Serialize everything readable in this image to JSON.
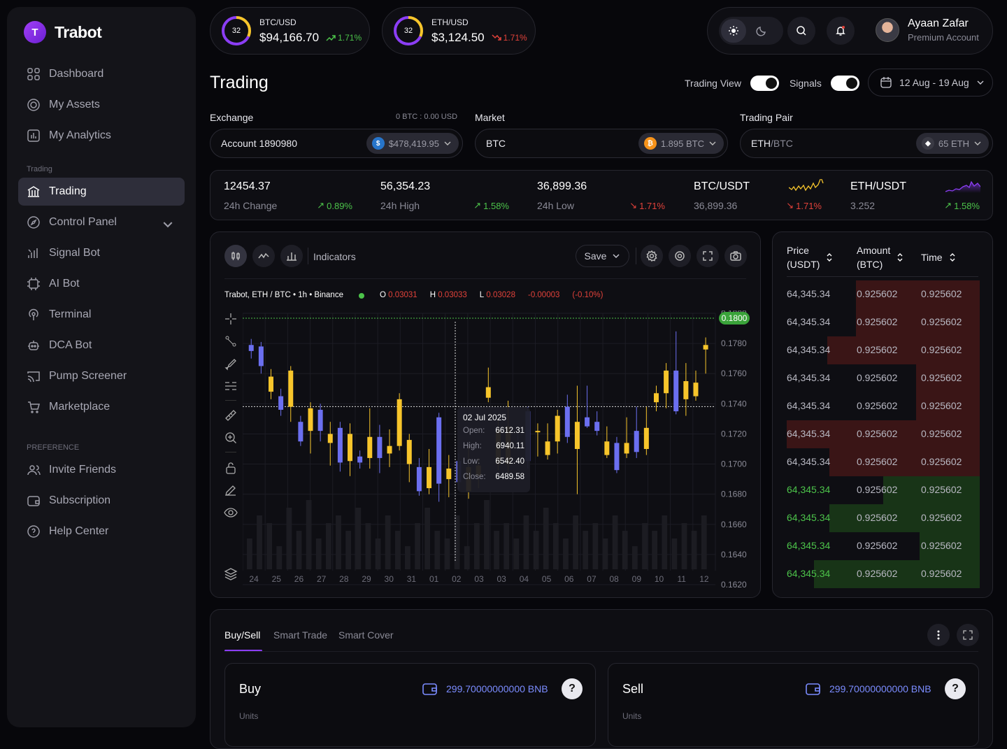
{
  "app": {
    "name": "Trabot",
    "logo_letter": "T"
  },
  "sidebar": {
    "items": [
      {
        "label": "Dashboard",
        "icon": "grid-icon"
      },
      {
        "label": "My Assets",
        "icon": "coins-icon"
      },
      {
        "label": "My Analytics",
        "icon": "bar-chart-icon"
      }
    ],
    "section_trading": "Trading",
    "trading_items": [
      {
        "label": "Trading",
        "icon": "bank-icon",
        "active": true
      },
      {
        "label": "Control Panel",
        "icon": "compass-icon"
      },
      {
        "label": "Signal Bot",
        "icon": "signal-icon"
      },
      {
        "label": "AI Bot",
        "icon": "chip-icon"
      },
      {
        "label": "Terminal",
        "icon": "broadcast-icon"
      },
      {
        "label": "DCA Bot",
        "icon": "robot-icon"
      },
      {
        "label": "Pump Screener",
        "icon": "cast-icon"
      },
      {
        "label": "Marketplace",
        "icon": "cart-icon"
      }
    ],
    "section_pref": "PREFERENCE",
    "pref_items": [
      {
        "label": "Invite Friends",
        "icon": "users-icon"
      },
      {
        "label": "Subscription",
        "icon": "wallet-icon"
      },
      {
        "label": "Help Center",
        "icon": "help-icon"
      }
    ]
  },
  "tickers": [
    {
      "pair": "BTC/USD",
      "price": "$94,166.70",
      "change": "1.71%",
      "dir": "up",
      "percent": "32",
      "ring_fill": 0.32
    },
    {
      "pair": "ETH/USD",
      "price": "$3,124.50",
      "change": "1.71%",
      "dir": "down",
      "percent": "32",
      "ring_fill": 0.32
    }
  ],
  "user": {
    "name": "Ayaan Zafar",
    "role": "Premium Account"
  },
  "page": {
    "title": "Trading"
  },
  "toggles": {
    "trading_view": "Trading View",
    "signals": "Signals"
  },
  "date_range": "12 Aug - 19 Aug",
  "exchange": {
    "label": "Exchange",
    "sub": "0 BTC : 0.00 USD",
    "account": "Account 1890980",
    "balance": "$478,419.95"
  },
  "market": {
    "label": "Market",
    "value": "BTC",
    "balance": "1.895 BTC"
  },
  "pair": {
    "label": "Trading Pair",
    "base": "ETH",
    "quote": "/BTC",
    "balance": "65 ETH"
  },
  "stats": [
    {
      "value": "12454.37",
      "label": "24h Change",
      "change": "0.89%",
      "dir": "up"
    },
    {
      "value": "56,354.23",
      "label": "24h High",
      "change": "1.58%",
      "dir": "up"
    },
    {
      "value": "36,899.36",
      "label": "24h Low",
      "change": "1.71%",
      "dir": "down"
    },
    {
      "value": "BTC/USDT",
      "label": "36,899.36",
      "change": "1.71%",
      "dir": "down"
    },
    {
      "value": "ETH/USDT",
      "label": "3.252",
      "change": "1.58%",
      "dir": "up"
    }
  ],
  "chart_toolbar": {
    "indicators": "Indicators",
    "save": "Save"
  },
  "ohlc": {
    "title": "Trabot, ETH / BTC • 1h • Binance",
    "o": "0.03031",
    "h": "0.03033",
    "l": "0.03028",
    "chg": "-0.00003",
    "pct": "(-0.10%)",
    "o_lbl": "O",
    "h_lbl": "H",
    "l_lbl": "L"
  },
  "tooltip": {
    "date": "02 Jul 2025",
    "rows": [
      [
        "Open:",
        "6612.31"
      ],
      [
        "High:",
        "6940.11"
      ],
      [
        "Low:",
        "6542.40"
      ],
      [
        "Close:",
        "6489.58"
      ]
    ]
  },
  "chart_data": {
    "type": "candlestick",
    "x_labels": [
      "24",
      "25",
      "26",
      "27",
      "28",
      "29",
      "30",
      "31",
      "01",
      "02",
      "03",
      "03",
      "04",
      "05",
      "06",
      "07",
      "08",
      "09",
      "10",
      "11",
      "12"
    ],
    "y_ticks": [
      "0.1800",
      "0.1780",
      "0.1760",
      "0.1740",
      "0.1720",
      "0.1700",
      "0.1680",
      "0.1660",
      "0.1640",
      "0.1620"
    ],
    "ylim": [
      0.162,
      0.18
    ],
    "current_price": "0.1800",
    "crosshair_price": 0.174,
    "colors": {
      "up": "#f7c52b",
      "down": "#6b6ff0",
      "grid": "#1c1c24"
    },
    "candles": [
      {
        "o": 0.1779,
        "c": 0.1775,
        "h": 0.1783,
        "l": 0.177
      },
      {
        "o": 0.1778,
        "c": 0.1765,
        "h": 0.1781,
        "l": 0.176
      },
      {
        "o": 0.1748,
        "c": 0.1758,
        "h": 0.1763,
        "l": 0.1743
      },
      {
        "o": 0.1745,
        "c": 0.1736,
        "h": 0.175,
        "l": 0.1732
      },
      {
        "o": 0.1738,
        "c": 0.1762,
        "h": 0.1765,
        "l": 0.1728
      },
      {
        "o": 0.1728,
        "c": 0.1715,
        "h": 0.1732,
        "l": 0.1712
      },
      {
        "o": 0.1722,
        "c": 0.1737,
        "h": 0.1741,
        "l": 0.1707
      },
      {
        "o": 0.1736,
        "c": 0.1722,
        "h": 0.174,
        "l": 0.1715
      },
      {
        "o": 0.1714,
        "c": 0.172,
        "h": 0.1728,
        "l": 0.1699
      },
      {
        "o": 0.1724,
        "c": 0.1701,
        "h": 0.1728,
        "l": 0.1695
      },
      {
        "o": 0.1702,
        "c": 0.172,
        "h": 0.1727,
        "l": 0.1692
      },
      {
        "o": 0.1705,
        "c": 0.1701,
        "h": 0.1709,
        "l": 0.1697
      },
      {
        "o": 0.1704,
        "c": 0.1718,
        "h": 0.1737,
        "l": 0.1697
      },
      {
        "o": 0.1718,
        "c": 0.1704,
        "h": 0.1726,
        "l": 0.1694
      },
      {
        "o": 0.1707,
        "c": 0.1712,
        "h": 0.1723,
        "l": 0.1698
      },
      {
        "o": 0.1712,
        "c": 0.1743,
        "h": 0.1747,
        "l": 0.1709
      },
      {
        "o": 0.17,
        "c": 0.1716,
        "h": 0.172,
        "l": 0.1688
      },
      {
        "o": 0.1698,
        "c": 0.1682,
        "h": 0.1704,
        "l": 0.1679
      },
      {
        "o": 0.1684,
        "c": 0.1698,
        "h": 0.171,
        "l": 0.168
      },
      {
        "o": 0.1731,
        "c": 0.1687,
        "h": 0.1734,
        "l": 0.1675
      },
      {
        "o": 0.169,
        "c": 0.1697,
        "h": 0.1706,
        "l": 0.1678
      },
      {
        "o": 0.1702,
        "c": 0.1688,
        "h": 0.1707,
        "l": 0.1683
      },
      {
        "o": 0.1682,
        "c": 0.1698,
        "h": 0.1712,
        "l": 0.1677
      },
      {
        "o": 0.1692,
        "c": 0.1699,
        "h": 0.1704,
        "l": 0.1684
      },
      {
        "o": 0.1744,
        "c": 0.1751,
        "h": 0.1764,
        "l": 0.1741
      },
      {
        "o": 0.17,
        "c": 0.1723,
        "h": 0.173,
        "l": 0.1696
      },
      {
        "o": 0.17,
        "c": 0.1725,
        "h": 0.1742,
        "l": 0.1694
      },
      {
        "o": 0.1713,
        "c": 0.1712,
        "h": 0.1721,
        "l": 0.1709
      },
      {
        "o": 0.1735,
        "c": 0.1702,
        "h": 0.1738,
        "l": 0.1697
      },
      {
        "o": 0.1722,
        "c": 0.1722,
        "h": 0.1727,
        "l": 0.1705
      },
      {
        "o": 0.1706,
        "c": 0.1715,
        "h": 0.1727,
        "l": 0.1703
      },
      {
        "o": 0.1715,
        "c": 0.1732,
        "h": 0.1736,
        "l": 0.1707
      },
      {
        "o": 0.1738,
        "c": 0.1718,
        "h": 0.1746,
        "l": 0.1714
      },
      {
        "o": 0.171,
        "c": 0.1728,
        "h": 0.1752,
        "l": 0.168
      },
      {
        "o": 0.1731,
        "c": 0.1725,
        "h": 0.1752,
        "l": 0.1724
      },
      {
        "o": 0.1728,
        "c": 0.1722,
        "h": 0.1735,
        "l": 0.1719
      },
      {
        "o": 0.1706,
        "c": 0.1715,
        "h": 0.1725,
        "l": 0.1704
      },
      {
        "o": 0.1714,
        "c": 0.1696,
        "h": 0.1718,
        "l": 0.1694
      },
      {
        "o": 0.1707,
        "c": 0.1714,
        "h": 0.1731,
        "l": 0.1704
      },
      {
        "o": 0.1722,
        "c": 0.1708,
        "h": 0.1738,
        "l": 0.1704
      },
      {
        "o": 0.171,
        "c": 0.1724,
        "h": 0.1738,
        "l": 0.1706
      },
      {
        "o": 0.1741,
        "c": 0.1747,
        "h": 0.1752,
        "l": 0.1735
      },
      {
        "o": 0.1747,
        "c": 0.1762,
        "h": 0.1767,
        "l": 0.1737
      },
      {
        "o": 0.1762,
        "c": 0.1735,
        "h": 0.1788,
        "l": 0.1733
      },
      {
        "o": 0.1743,
        "c": 0.1755,
        "h": 0.1767,
        "l": 0.1732
      },
      {
        "o": 0.1745,
        "c": 0.1754,
        "h": 0.1762,
        "l": 0.1742
      },
      {
        "o": 0.1776,
        "c": 0.1779,
        "h": 0.1784,
        "l": 0.176
      }
    ],
    "volumes": [
      0.4,
      0.7,
      0.6,
      0.3,
      0.8,
      0.5,
      0.9,
      0.4,
      0.6,
      0.7,
      0.5,
      0.8,
      0.6,
      0.4,
      0.7,
      0.5,
      0.3,
      0.6,
      0.8,
      0.5,
      0.4,
      0.7,
      0.3,
      0.6,
      0.9,
      0.5,
      0.6,
      0.4,
      0.7,
      0.5,
      0.8,
      0.6,
      0.4,
      0.7,
      0.5,
      0.6,
      0.4,
      0.7,
      0.5,
      0.3,
      0.6,
      0.5,
      0.7,
      0.4,
      0.6,
      0.5,
      0.7
    ]
  },
  "orderbook": {
    "headers": {
      "price": "Price",
      "price_unit": "(USDT)",
      "amount": "Amount",
      "amount_unit": "(BTC)",
      "time": "Time"
    },
    "rows": [
      {
        "price": "64,345.34",
        "amount": "0.925602",
        "time": "0.925602",
        "side": "sell",
        "depth": 0.64
      },
      {
        "price": "64,345.34",
        "amount": "0.925602",
        "time": "0.925602",
        "side": "sell",
        "depth": 0.64
      },
      {
        "price": "64,345.34",
        "amount": "0.925602",
        "time": "0.925602",
        "side": "sell",
        "depth": 0.79
      },
      {
        "price": "64,345.34",
        "amount": "0.925602",
        "time": "0.925602",
        "side": "sell",
        "depth": 0.33
      },
      {
        "price": "64,345.34",
        "amount": "0.925602",
        "time": "0.925602",
        "side": "sell",
        "depth": 0.33
      },
      {
        "price": "64,345.34",
        "amount": "0.925602",
        "time": "0.925602",
        "side": "sell",
        "depth": 1.0
      },
      {
        "price": "64,345.34",
        "amount": "0.925602",
        "time": "0.925602",
        "side": "sell",
        "depth": 0.78
      },
      {
        "price": "64,345.34",
        "amount": "0.925602",
        "time": "0.925602",
        "side": "buy",
        "depth": 0.5
      },
      {
        "price": "64,345.34",
        "amount": "0.925602",
        "time": "0.925602",
        "side": "buy",
        "depth": 0.78
      },
      {
        "price": "64,345.34",
        "amount": "0.925602",
        "time": "0.925602",
        "side": "buy",
        "depth": 0.31
      },
      {
        "price": "64,345.34",
        "amount": "0.925602",
        "time": "0.925602",
        "side": "buy",
        "depth": 0.86
      }
    ]
  },
  "trade": {
    "tabs": [
      "Buy/Sell",
      "Smart Trade",
      "Smart Cover"
    ],
    "buy": {
      "title": "Buy",
      "balance": "299.70000000000 BNB",
      "units": "Units"
    },
    "sell": {
      "title": "Sell",
      "balance": "299.70000000000 BNB",
      "units": "Units"
    }
  }
}
